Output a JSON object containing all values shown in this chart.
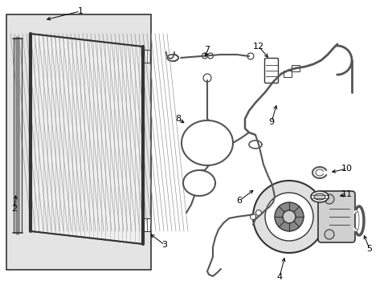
{
  "background_color": "#ffffff",
  "fig_width": 4.89,
  "fig_height": 3.6,
  "dpi": 100,
  "line_color": "#555555",
  "dark_color": "#333333",
  "light_gray": "#d8d8d8",
  "mid_gray": "#aaaaaa"
}
